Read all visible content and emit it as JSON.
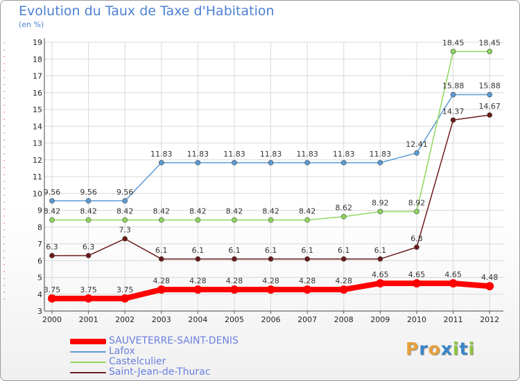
{
  "title": "Evolution du Taux de Taxe d'Habitation",
  "unit": "(en %)",
  "logo": {
    "letters": [
      "P",
      "r",
      "o",
      "x",
      "i",
      "t",
      "i"
    ],
    "colors": [
      "#e8a13a",
      "#3a86c8",
      "#e8a13a",
      "#3a86c8",
      "#8cc63f",
      "#3a86c8",
      "#8cc63f"
    ]
  },
  "chart_data": {
    "type": "line",
    "x": [
      "2000",
      "2001",
      "2002",
      "2003",
      "2004",
      "2005",
      "2006",
      "2007",
      "2008",
      "2009",
      "2010",
      "2011",
      "2012"
    ],
    "ylim": [
      3,
      19
    ],
    "yticks": [
      "3",
      "4",
      "5",
      "6",
      "7",
      "8",
      "9",
      "10",
      "11",
      "12",
      "13",
      "14",
      "15",
      "16",
      "17",
      "18",
      "19"
    ],
    "grid": true,
    "legend_position": "bottom-left",
    "series": [
      {
        "name": "SAUVETERRE-SAINT-DENIS",
        "color": "#ff0000",
        "values": [
          3.75,
          3.75,
          3.75,
          4.28,
          4.28,
          4.28,
          4.28,
          4.28,
          4.28,
          4.65,
          4.65,
          4.65,
          4.48
        ],
        "labels": [
          "3.75",
          "3.75",
          "3.75",
          "4.28",
          "4.28",
          "4.28",
          "4.28",
          "4.28",
          "4.28",
          "4.65",
          "4.65",
          "4.65",
          "4.48"
        ]
      },
      {
        "name": "Lafox",
        "color": "#5a9bd5",
        "values": [
          9.56,
          9.56,
          9.56,
          11.83,
          11.83,
          11.83,
          11.83,
          11.83,
          11.83,
          11.83,
          12.41,
          15.88,
          15.88
        ],
        "labels": [
          "9.56",
          "9.56",
          "9.56",
          "11.83",
          "11.83",
          "11.83",
          "11.83",
          "11.83",
          "11.83",
          "11.83",
          "12.41",
          "15.88",
          "15.88"
        ]
      },
      {
        "name": "Castelculier",
        "color": "#8fd65c",
        "values": [
          8.42,
          8.42,
          8.42,
          8.42,
          8.42,
          8.42,
          8.42,
          8.42,
          8.62,
          8.92,
          8.92,
          18.45,
          18.45
        ],
        "labels": [
          "8.42",
          "8.42",
          "8.42",
          "8.42",
          "8.42",
          "8.42",
          "8.42",
          "8.42",
          "8.62",
          "8.92",
          "8.92",
          "18.45",
          "18.45"
        ]
      },
      {
        "name": "Saint-Jean-de-Thurac",
        "color": "#6b1a1a",
        "values": [
          6.3,
          6.3,
          7.3,
          6.1,
          6.1,
          6.1,
          6.1,
          6.1,
          6.1,
          6.1,
          6.8,
          14.37,
          14.67
        ],
        "labels": [
          "6.3",
          "6.3",
          "7.3",
          "6.1",
          "6.1",
          "6.1",
          "6.1",
          "6.1",
          "6.1",
          "6.1",
          "6.8",
          "14.37",
          "14.67"
        ]
      }
    ]
  }
}
